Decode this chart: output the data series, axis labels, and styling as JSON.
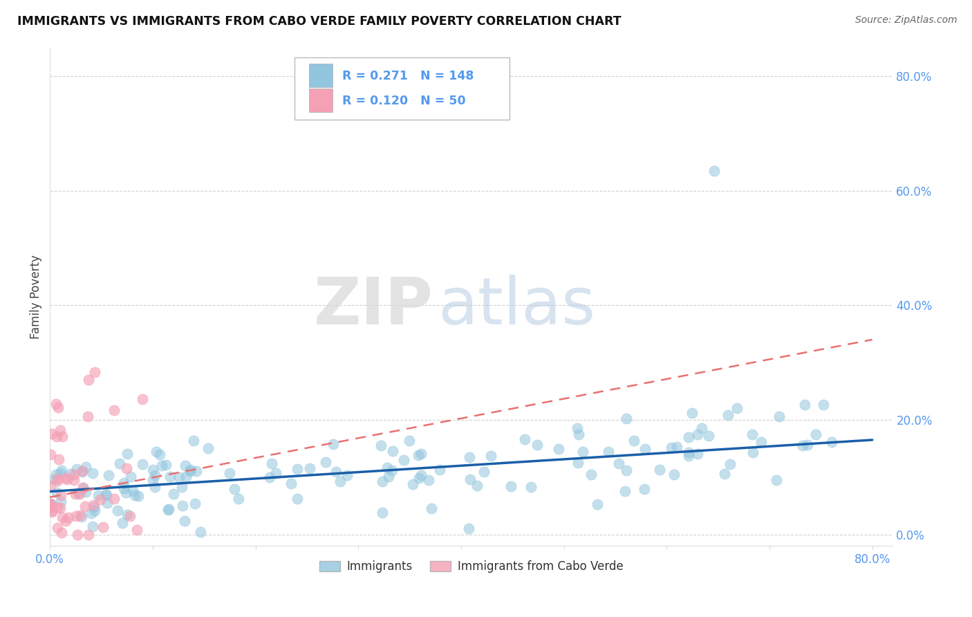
{
  "title": "IMMIGRANTS VS IMMIGRANTS FROM CABO VERDE FAMILY POVERTY CORRELATION CHART",
  "source": "Source: ZipAtlas.com",
  "ylabel": "Family Poverty",
  "legend_r1": "R = 0.271",
  "legend_n1": "N = 148",
  "legend_r2": "R = 0.120",
  "legend_n2": "N =  50",
  "legend_label1": "Immigrants",
  "legend_label2": "Immigrants from Cabo Verde",
  "blue_color": "#92c5de",
  "pink_color": "#f4a0b5",
  "blue_line_color": "#1a5fa8",
  "pink_line_color": "#e87070",
  "R1": 0.271,
  "N1": 148,
  "R2": 0.12,
  "N2": 50,
  "xlim": [
    0.0,
    0.82
  ],
  "ylim": [
    -0.02,
    0.85
  ],
  "ytick_vals": [
    0.0,
    0.2,
    0.4,
    0.6,
    0.8
  ],
  "background_color": "#ffffff",
  "grid_color": "#cccccc",
  "tick_color": "#5599ee",
  "watermark_zip": "ZIP",
  "watermark_atlas": "atlas",
  "blue_trend_start_x": 0.0,
  "blue_trend_start_y": 0.075,
  "blue_trend_end_x": 0.8,
  "blue_trend_end_y": 0.165,
  "pink_trend_start_x": 0.0,
  "pink_trend_start_y": 0.065,
  "pink_trend_end_x": 0.8,
  "pink_trend_end_y": 0.34
}
